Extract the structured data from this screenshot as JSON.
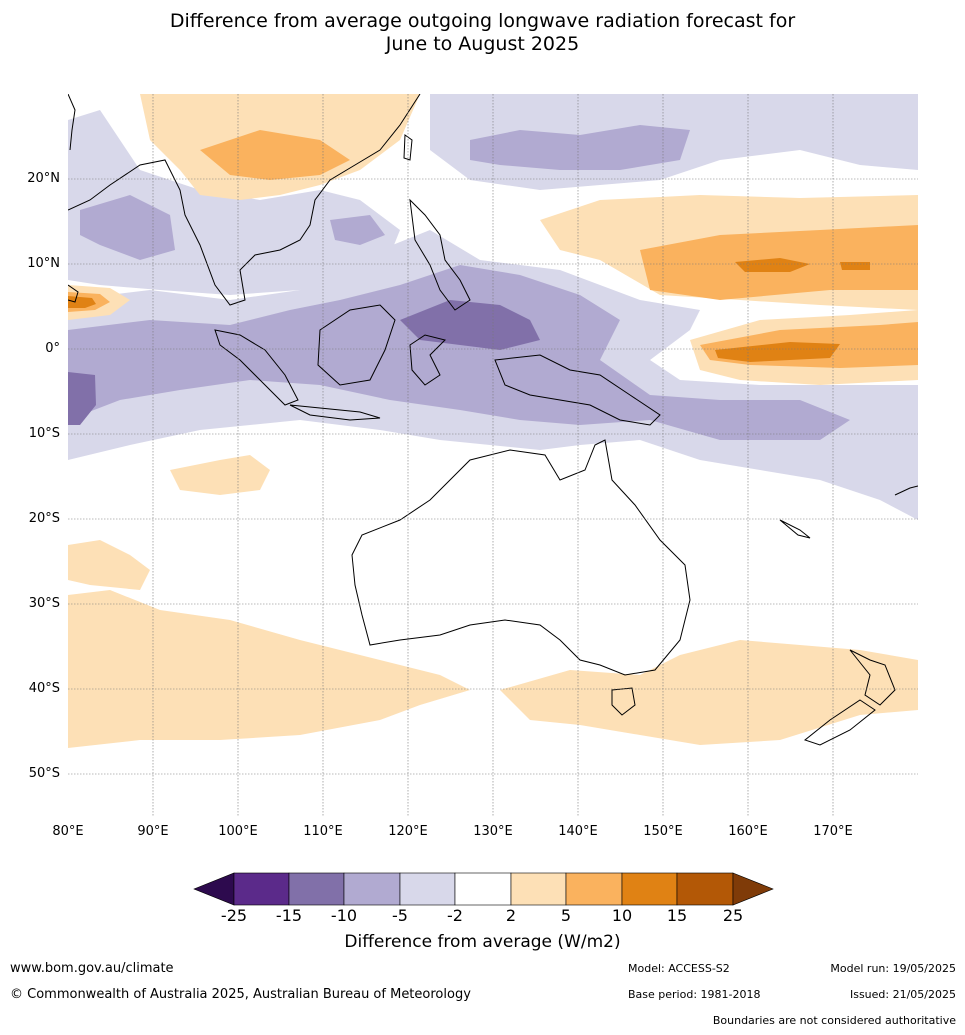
{
  "title": {
    "line1": "Difference from average outgoing longwave radiation forecast for",
    "line2": "June to August 2025"
  },
  "map": {
    "lat_labels": [
      "20°N",
      "10°N",
      "0°",
      "10°S",
      "20°S",
      "30°S",
      "40°S",
      "50°S"
    ],
    "lon_labels": [
      "80°E",
      "90°E",
      "100°E",
      "110°E",
      "120°E",
      "130°E",
      "140°E",
      "150°E",
      "160°E",
      "170°E"
    ],
    "lat_range": [
      -55,
      30
    ],
    "lon_range": [
      80,
      180
    ],
    "gridlines": true
  },
  "colorbar": {
    "title": "Difference from average (W/m2)",
    "tick_labels": [
      "-25",
      "-15",
      "-10",
      "-5",
      "-2",
      "2",
      "5",
      "10",
      "15",
      "25"
    ],
    "colors": [
      "#2d0a4e",
      "#5b2a8a",
      "#8170a9",
      "#b1aad1",
      "#d8d8ea",
      "#ffffff",
      "#fde0b6",
      "#fab25e",
      "#e08214",
      "#b35806",
      "#7f3b08"
    ]
  },
  "footer": {
    "website": "www.bom.gov.au/climate",
    "copyright": "© Commonwealth of Australia 2025, Australian Bureau of Meteorology",
    "model": "Model: ACCESS-S2",
    "model_run": "Model run: 19/05/2025",
    "base_period": "Base period: 1981-2018",
    "issued": "Issued: 21/05/2025",
    "disclaimer": "Boundaries are not considered authoritative"
  }
}
